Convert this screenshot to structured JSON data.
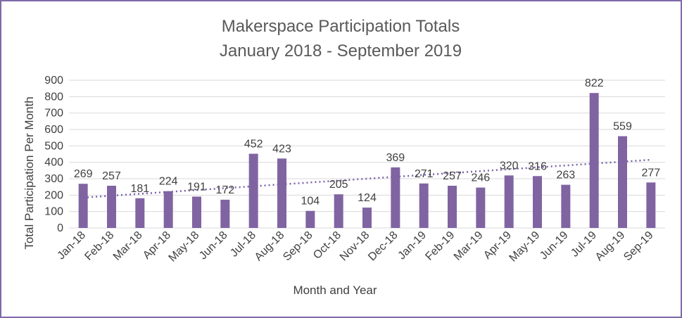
{
  "chart_data": {
    "type": "bar",
    "title_line1": "Makerspace Participation Totals",
    "title_line2": "January 2018 - September 2019",
    "xlabel": "Month and Year",
    "ylabel": "Total Participation Per Month",
    "ylim": [
      0,
      900
    ],
    "yticks": [
      0,
      100,
      200,
      300,
      400,
      500,
      600,
      700,
      800,
      900
    ],
    "grid": true,
    "legend": "none",
    "trendline": "linear",
    "categories": [
      "Jan-18",
      "Feb-18",
      "Mar-18",
      "Apr-18",
      "May-18",
      "Jun-18",
      "Jul-18",
      "Aug-18",
      "Sep-18",
      "Oct-18",
      "Nov-18",
      "Dec-18",
      "Jan-19",
      "Feb-19",
      "Mar-19",
      "Apr-19",
      "May-19",
      "Jun-19",
      "Jul-19",
      "Aug-19",
      "Sep-19"
    ],
    "values": [
      269,
      257,
      181,
      224,
      191,
      172,
      452,
      423,
      104,
      205,
      124,
      369,
      271,
      257,
      246,
      320,
      316,
      263,
      822,
      559,
      277
    ],
    "bar_color": "#8064a2"
  }
}
